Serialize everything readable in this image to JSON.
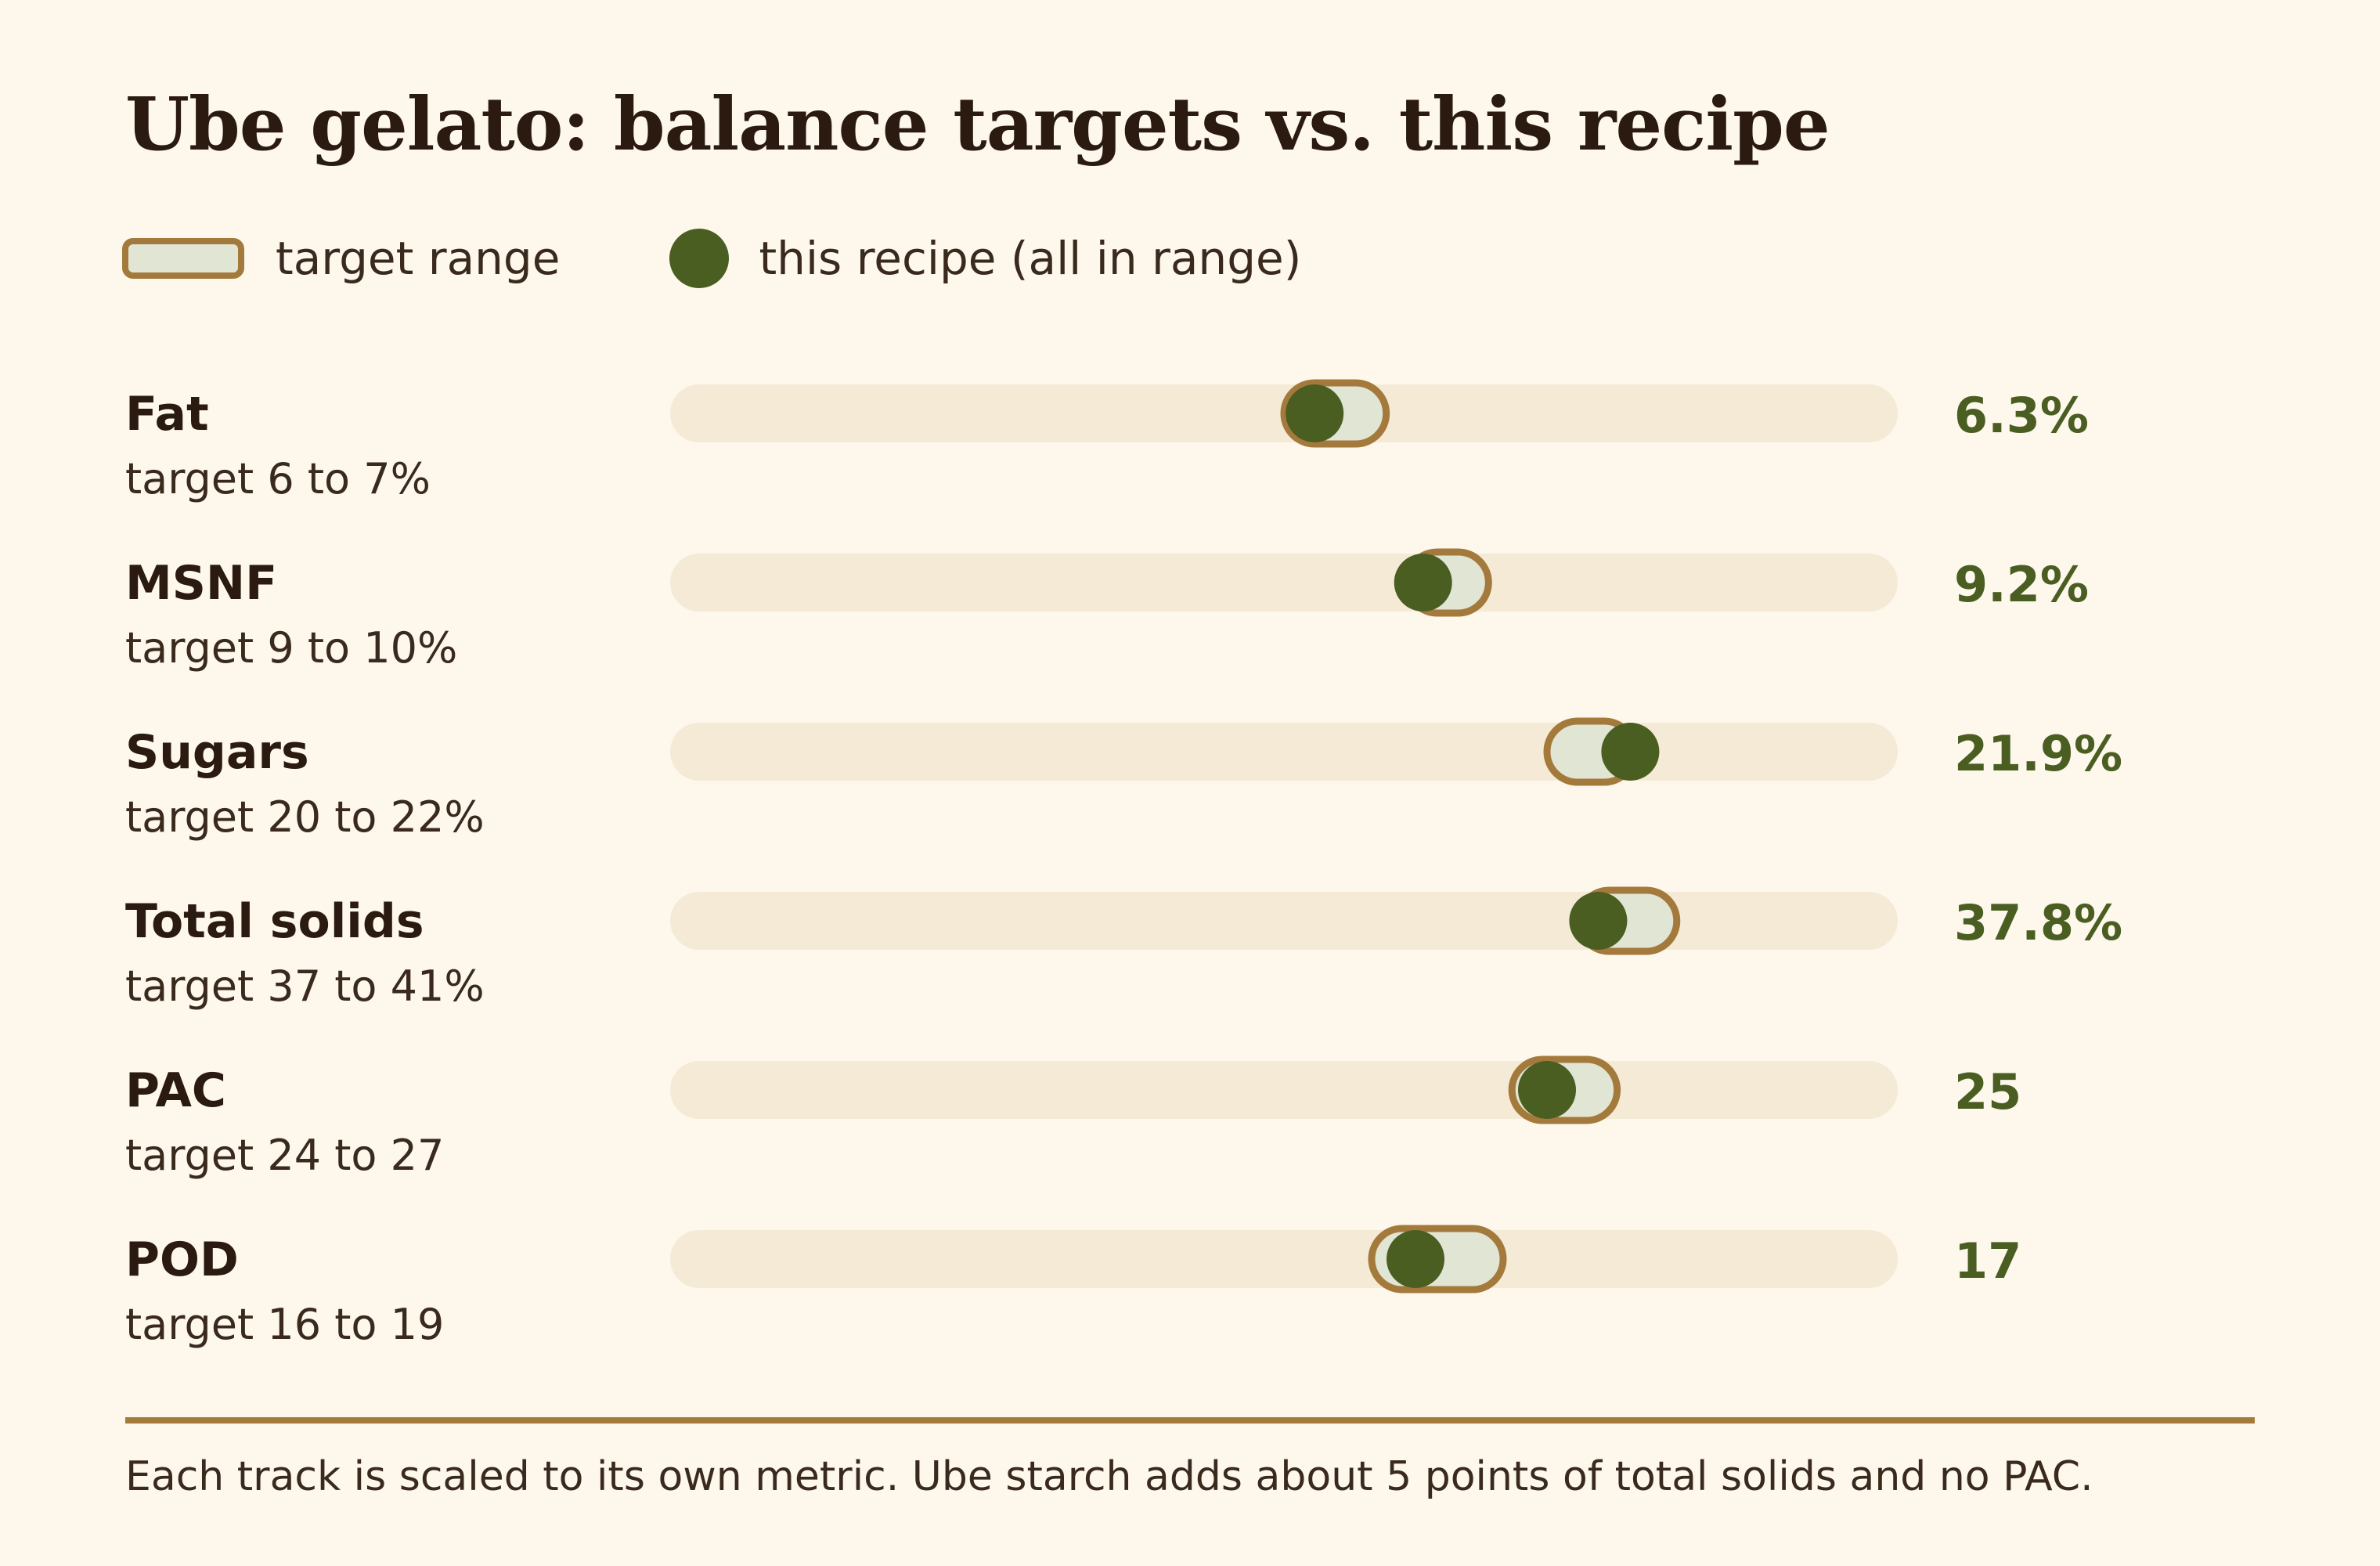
{
  "chart_data": {
    "type": "range-dot",
    "title": "Ube gelato: balance targets vs. this recipe",
    "legend": [
      {
        "label": "target range",
        "kind": "range"
      },
      {
        "label": "this recipe (all in range)",
        "kind": "dot"
      }
    ],
    "legend_placement": "top-left",
    "rows": [
      {
        "name": "Fat",
        "target_label": "target 6 to 7%",
        "target_min": 6,
        "target_max": 7,
        "value": 6.3,
        "value_label": "6.3%",
        "scale": [
          0,
          12
        ]
      },
      {
        "name": "MSNF",
        "target_label": "target 9 to 10%",
        "target_min": 9,
        "target_max": 10,
        "value": 9.2,
        "value_label": "9.2%",
        "scale": [
          0,
          15
        ]
      },
      {
        "name": "Sugars",
        "target_label": "target 20 to 22%",
        "target_min": 20,
        "target_max": 22,
        "value": 21.9,
        "value_label": "21.9%",
        "scale": [
          0,
          28
        ]
      },
      {
        "name": "Total solids",
        "target_label": "target 37 to 41%",
        "target_min": 37,
        "target_max": 41,
        "value": 37.8,
        "value_label": "37.8%",
        "scale": [
          0,
          50
        ]
      },
      {
        "name": "PAC",
        "target_label": "target 24 to 27",
        "target_min": 24,
        "target_max": 27,
        "value": 25,
        "value_label": "25",
        "scale": [
          0,
          35
        ]
      },
      {
        "name": "POD",
        "target_label": "target 16 to 19",
        "target_min": 16,
        "target_max": 19,
        "value": 17,
        "value_label": "17",
        "scale": [
          0,
          28
        ]
      }
    ],
    "footnote": "Each track is scaled to its own metric. Ube starch adds about 5 points of total solids and no PAC.",
    "colors": {
      "background": "#fdf7ec",
      "track": "#f4ead6",
      "range_fill": "#e0e5d4",
      "range_border": "#a47a3c",
      "dot": "#4a5e22",
      "value_text": "#4a5e22",
      "rule": "#a47a3c"
    }
  }
}
